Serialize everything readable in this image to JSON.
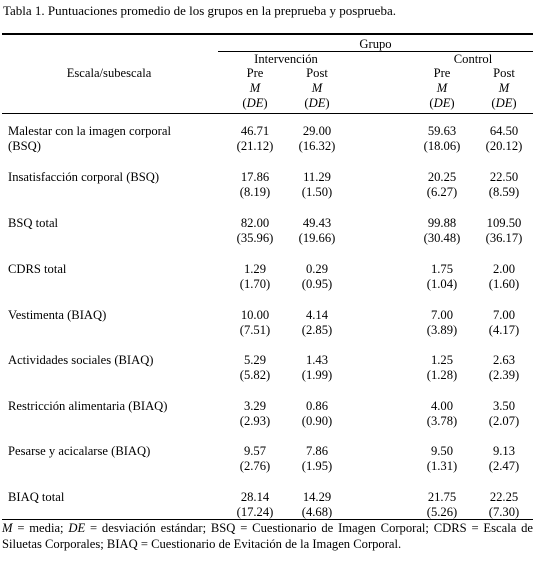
{
  "caption": "Tabla 1. Puntuaciones promedio de los grupos en la preprueba y posprueba.",
  "header": {
    "stub": "Escala/subescala",
    "group": "Grupo",
    "conditions": [
      {
        "label": "Intervención",
        "periods": [
          "Pre",
          "Post"
        ]
      },
      {
        "label": "Control",
        "periods": [
          "Pre",
          "Post"
        ]
      }
    ],
    "stat_mean": "M",
    "stat_sd": "(DE)",
    "sd_open": "(",
    "sd_abbr": "DE",
    "sd_close": ")"
  },
  "rows": [
    {
      "label": [
        "Malestar con la imagen corporal",
        "(BSQ)"
      ],
      "means": [
        "46.71",
        "29.00",
        "59.63",
        "64.50"
      ],
      "sds": [
        "(21.12)",
        "(16.32)",
        "(18.06)",
        "(20.12)"
      ]
    },
    {
      "label": [
        "Insatisfacción corporal (BSQ)"
      ],
      "means": [
        "17.86",
        "11.29",
        "20.25",
        "22.50"
      ],
      "sds": [
        "(8.19)",
        "(1.50)",
        "(6.27)",
        "(8.59)"
      ]
    },
    {
      "label": [
        "BSQ total"
      ],
      "means": [
        "82.00",
        "49.43",
        "99.88",
        "109.50"
      ],
      "sds": [
        "(35.96)",
        "(19.66)",
        "(30.48)",
        "(36.17)"
      ]
    },
    {
      "label": [
        "CDRS total"
      ],
      "means": [
        "1.29",
        "0.29",
        "1.75",
        "2.00"
      ],
      "sds": [
        "(1.70)",
        "(0.95)",
        "(1.04)",
        "(1.60)"
      ]
    },
    {
      "label": [
        "Vestimenta (BIAQ)"
      ],
      "means": [
        "10.00",
        "4.14",
        "7.00",
        "7.00"
      ],
      "sds": [
        "(7.51)",
        "(2.85)",
        "(3.89)",
        "(4.17)"
      ]
    },
    {
      "label": [
        "Actividades sociales (BIAQ)"
      ],
      "means": [
        "5.29",
        "1.43",
        "1.25",
        "2.63"
      ],
      "sds": [
        "(5.82)",
        "(1.99)",
        "(1.28)",
        "(2.39)"
      ]
    },
    {
      "label": [
        "Restricción alimentaria (BIAQ)"
      ],
      "means": [
        "3.29",
        "0.86",
        "4.00",
        "3.50"
      ],
      "sds": [
        "(2.93)",
        "(0.90)",
        "(3.78)",
        "(2.07)"
      ]
    },
    {
      "label": [
        "Pesarse y acicalarse (BIAQ)"
      ],
      "means": [
        "9.57",
        "7.86",
        "9.50",
        "9.13"
      ],
      "sds": [
        "(2.76)",
        "(1.95)",
        "(1.31)",
        "(2.47)"
      ]
    },
    {
      "label": [
        "BIAQ total"
      ],
      "means": [
        "28.14",
        "14.29",
        "21.75",
        "22.25"
      ],
      "sds": [
        "(17.24)",
        "(4.68)",
        "(5.26)",
        "(7.30)"
      ]
    }
  ],
  "note": {
    "m_symbol": "M",
    "m_text": " = media; ",
    "de_symbol": "DE",
    "rest": " = desviación estándar; BSQ = Cuestionario de Imagen Corporal; CDRS = Escala de Siluetas Corporales; BIAQ = Cuestionario de Evitación de la Imagen Corporal."
  }
}
